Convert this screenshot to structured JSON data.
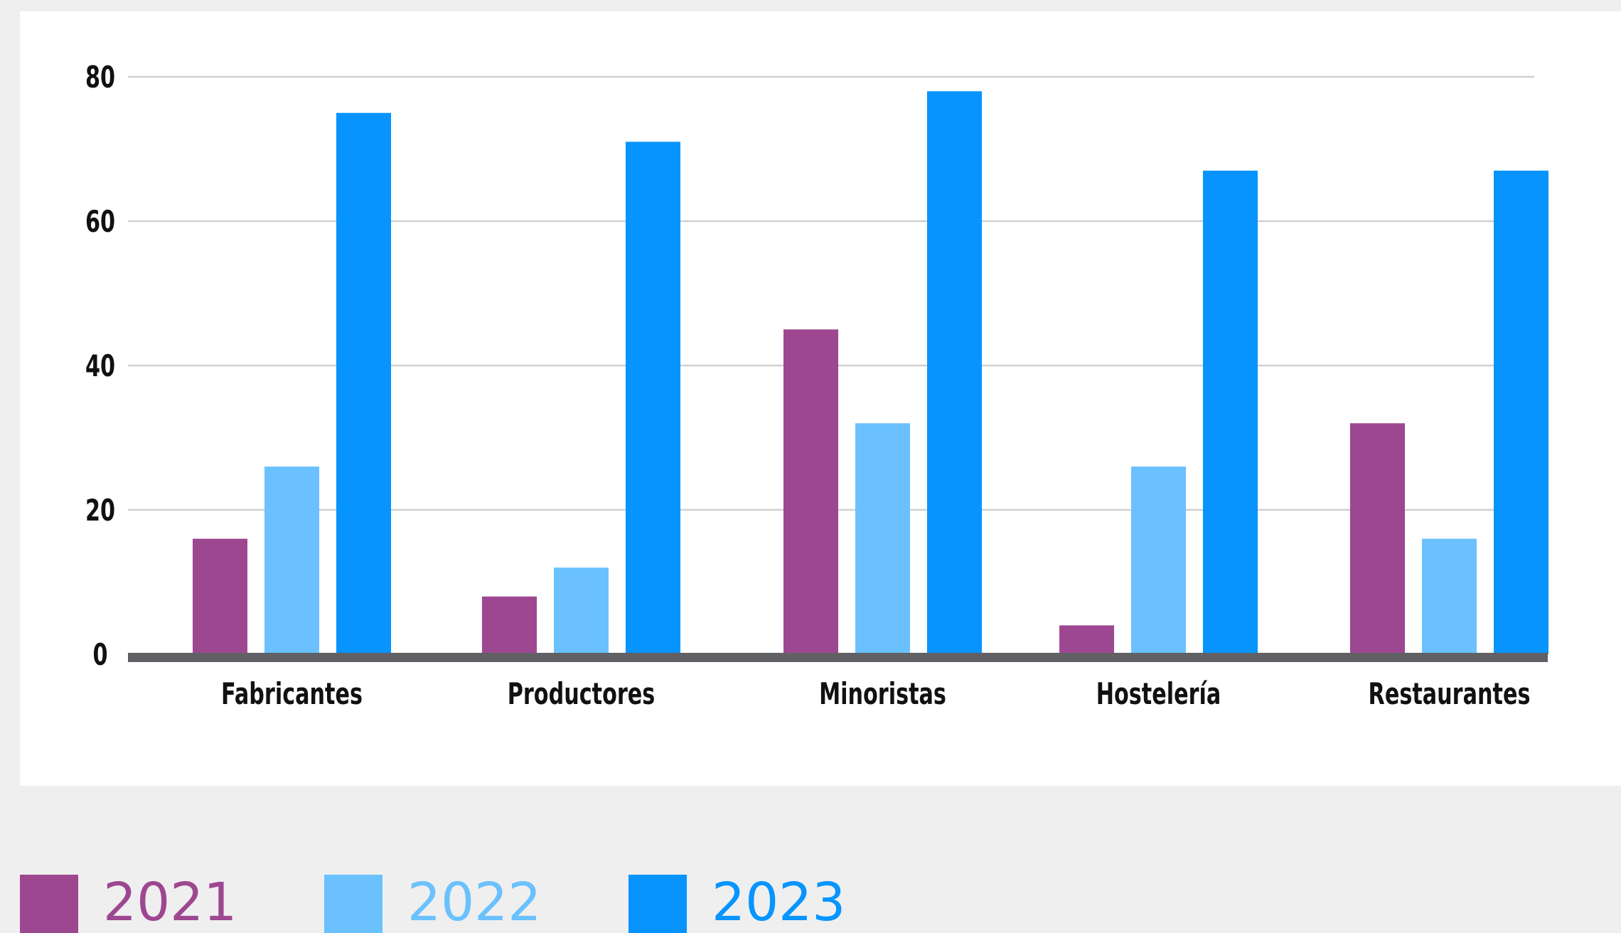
{
  "chart_data": {
    "type": "bar",
    "title": "",
    "xlabel": "",
    "ylabel": "",
    "categories": [
      "Fabricantes",
      "Productores",
      "Minoristas",
      "Hostelería",
      "Restaurantes"
    ],
    "series": [
      {
        "name": "2021",
        "color": "#9e4791",
        "values": [
          16,
          8,
          45,
          4,
          32
        ]
      },
      {
        "name": "2022",
        "color": "#6ac1fe",
        "values": [
          26,
          12,
          32,
          26,
          16
        ]
      },
      {
        "name": "2023",
        "color": "#0794fe",
        "values": [
          75,
          71,
          78,
          67,
          67
        ]
      }
    ],
    "ylim": [
      0,
      80
    ],
    "yticks": [
      "0",
      "20",
      "40",
      "60",
      "80"
    ],
    "grid": true,
    "legend_position": "bottom-left"
  }
}
